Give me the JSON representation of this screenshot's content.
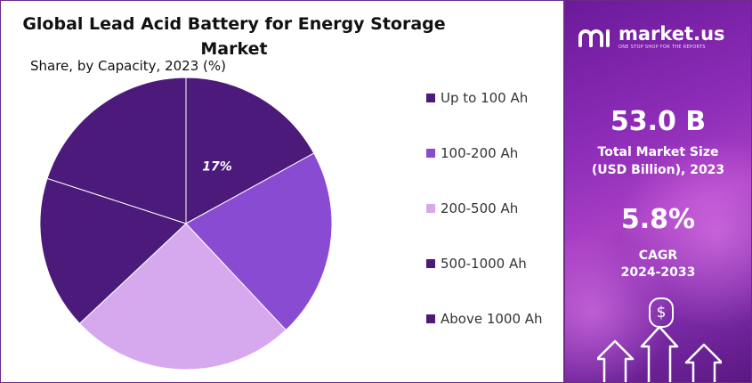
{
  "chart_data": {
    "type": "pie",
    "title": "Global Lead Acid Battery for Energy Storage Market",
    "subtitle": "Share, by Capacity, 2023 (%)",
    "categories": [
      "Up to 100 Ah",
      "100-200 Ah",
      "200-500 Ah",
      "500-1000 Ah",
      "Above 1000 Ah"
    ],
    "values": [
      17,
      21,
      25,
      17,
      20
    ],
    "data_labels": [
      "17%",
      "",
      "",
      "",
      ""
    ],
    "colors": [
      "#4b1a7a",
      "#8a4bd3",
      "#d6a9ef",
      "#4b1a7a",
      "#4b1a7a"
    ],
    "legend_position": "right"
  },
  "sidebar": {
    "brand": "market.us",
    "tagline": "ONE STOP SHOP FOR THE REPORTS",
    "market_size_value": "53.0 B",
    "market_size_label_line1": "Total Market Size",
    "market_size_label_line2": "(USD Billion), 2023",
    "cagr_value": "5.8%",
    "cagr_label_line1": "CAGR",
    "cagr_label_line2": "2024-2033",
    "dollar_symbol": "$"
  }
}
